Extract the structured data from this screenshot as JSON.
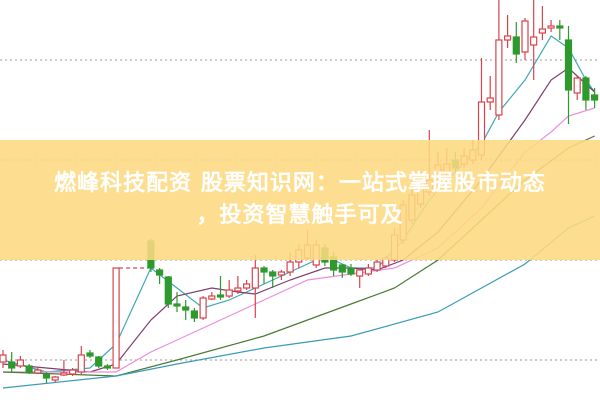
{
  "banner": {
    "line1": "燃峰科技配资 股票知识网：一站式掌握股市动态",
    "line2": "，投资智慧触手可及",
    "color": "#fdda82"
  },
  "chart_data": {
    "type": "candlestick",
    "title": "",
    "xlabel": "",
    "ylabel": "",
    "ylim": [
      0,
      100
    ],
    "grid": "dotted horizontal",
    "gridlines": [
      10,
      35,
      60,
      85
    ],
    "colors": {
      "up": "#d9434b",
      "down": "#2e9a2e",
      "ma5": "#3fa9b5",
      "ma10": "#7e3d6e",
      "ma20": "#e98ee0",
      "ma30": "#4a7a34",
      "ma60": "#3a9ab8"
    },
    "candles": [
      {
        "d": 0,
        "o": 9.5,
        "c": 11.25,
        "h": 12.5,
        "l": 8
      },
      {
        "d": 1,
        "o": 9.5,
        "c": 8,
        "h": 12,
        "l": 7
      },
      {
        "d": 2,
        "o": 8.5,
        "c": 10,
        "h": 11,
        "l": 8
      },
      {
        "d": 3,
        "o": 8.5,
        "c": 7,
        "h": 9,
        "l": 6.5
      },
      {
        "d": 4,
        "o": 6.75,
        "c": 7.5,
        "h": 8,
        "l": 6.5
      },
      {
        "d": 5,
        "o": 6.5,
        "c": 5.5,
        "h": 7,
        "l": 4.25
      },
      {
        "d": 6,
        "o": 5,
        "c": 5.75,
        "h": 6,
        "l": 4.5
      },
      {
        "d": 7,
        "o": 6.25,
        "c": 6.75,
        "h": 10,
        "l": 6
      },
      {
        "d": 8,
        "o": 6.5,
        "c": 7.5,
        "h": 8,
        "l": 6
      },
      {
        "d": 9,
        "o": 7,
        "c": 11.25,
        "h": 13.5,
        "l": 6.5
      },
      {
        "d": 10,
        "o": 11.75,
        "c": 11,
        "h": 12.5,
        "l": 10.5
      },
      {
        "d": 11,
        "o": 10.75,
        "c": 8.5,
        "h": 11,
        "l": 8
      },
      {
        "d": 12,
        "o": 8.5,
        "c": 8,
        "h": 9,
        "l": 7.5
      },
      {
        "d": 13,
        "o": 8,
        "c": 33,
        "h": 33,
        "l": 8
      },
      {
        "d": 17,
        "o": 39.75,
        "c": 33,
        "h": 40.25,
        "l": 32
      },
      {
        "d": 18,
        "o": 32.5,
        "c": 31.25,
        "h": 33,
        "l": 29
      },
      {
        "d": 19,
        "o": 30.75,
        "c": 24,
        "h": 31,
        "l": 23
      },
      {
        "d": 20,
        "o": 24,
        "c": 23.5,
        "h": 27,
        "l": 22
      },
      {
        "d": 21,
        "o": 23.25,
        "c": 22.5,
        "h": 25,
        "l": 20
      },
      {
        "d": 22,
        "o": 22.25,
        "c": 20.5,
        "h": 23,
        "l": 19.5
      },
      {
        "d": 23,
        "o": 20.5,
        "c": 25.5,
        "h": 26,
        "l": 20
      },
      {
        "d": 24,
        "o": 25.25,
        "c": 26,
        "h": 27,
        "l": 25
      },
      {
        "d": 25,
        "o": 26.25,
        "c": 25.75,
        "h": 31,
        "l": 25
      },
      {
        "d": 26,
        "o": 26,
        "c": 27.5,
        "h": 30,
        "l": 25.5
      },
      {
        "d": 27,
        "o": 27.25,
        "c": 28,
        "h": 31,
        "l": 26.5
      },
      {
        "d": 28,
        "o": 28,
        "c": 29,
        "h": 30,
        "l": 27.5
      },
      {
        "d": 29,
        "o": 28,
        "c": 33,
        "h": 36.25,
        "l": 20.5
      },
      {
        "d": 30,
        "o": 33,
        "c": 32,
        "h": 33.5,
        "l": 29
      },
      {
        "d": 31,
        "o": 32,
        "c": 31,
        "h": 32.5,
        "l": 28
      },
      {
        "d": 32,
        "o": 31.25,
        "c": 32,
        "h": 32.5,
        "l": 30
      },
      {
        "d": 33,
        "o": 32,
        "c": 34.5,
        "h": 37,
        "l": 31
      },
      {
        "d": 34,
        "o": 34.5,
        "c": 37.5,
        "h": 39,
        "l": 33
      },
      {
        "d": 35,
        "o": 35.5,
        "c": 38.75,
        "h": 42.5,
        "l": 35
      },
      {
        "d": 36,
        "o": 33.75,
        "c": 38.75,
        "h": 40,
        "l": 33
      },
      {
        "d": 37,
        "o": 38,
        "c": 34.5,
        "h": 39,
        "l": 33.5
      },
      {
        "d": 38,
        "o": 35.75,
        "c": 32.5,
        "h": 37,
        "l": 31
      },
      {
        "d": 39,
        "o": 33.75,
        "c": 32,
        "h": 34,
        "l": 30.5
      },
      {
        "d": 40,
        "o": 33,
        "c": 31.5,
        "h": 34,
        "l": 31
      },
      {
        "d": 41,
        "o": 31,
        "c": 32.5,
        "h": 33,
        "l": 28
      },
      {
        "d": 42,
        "o": 31.5,
        "c": 33,
        "h": 34,
        "l": 31
      },
      {
        "d": 43,
        "o": 32.5,
        "c": 34.5,
        "h": 35,
        "l": 32
      },
      {
        "d": 44,
        "o": 33.5,
        "c": 35.5,
        "h": 36,
        "l": 33
      },
      {
        "d": 45,
        "o": 35,
        "c": 41.25,
        "h": 43,
        "l": 34.5
      },
      {
        "d": 46,
        "o": 40,
        "c": 48.75,
        "h": 50,
        "l": 39
      },
      {
        "d": 47,
        "o": 45,
        "c": 51.25,
        "h": 55,
        "l": 44
      },
      {
        "d": 48,
        "o": 49,
        "c": 53,
        "h": 57,
        "l": 48
      },
      {
        "d": 49,
        "o": 52,
        "c": 55,
        "h": 67.5,
        "l": 51
      },
      {
        "d": 50,
        "o": 55,
        "c": 58.75,
        "h": 62,
        "l": 54
      },
      {
        "d": 51,
        "o": 57,
        "c": 59,
        "h": 63,
        "l": 56
      },
      {
        "d": 52,
        "o": 60,
        "c": 58,
        "h": 62,
        "l": 57
      },
      {
        "d": 53,
        "o": 59,
        "c": 61,
        "h": 63,
        "l": 58
      },
      {
        "d": 54,
        "o": 60,
        "c": 62.5,
        "h": 65,
        "l": 59
      },
      {
        "d": 55,
        "o": 61.25,
        "c": 74.5,
        "h": 85.5,
        "l": 60
      },
      {
        "d": 56,
        "o": 74.5,
        "c": 75.5,
        "h": 81,
        "l": 72.5
      },
      {
        "d": 57,
        "o": 71.25,
        "c": 90,
        "h": 100,
        "l": 70
      },
      {
        "d": 58,
        "o": 90,
        "c": 91,
        "h": 96.25,
        "l": 88
      },
      {
        "d": 59,
        "o": 90.75,
        "c": 86.5,
        "h": 94.5,
        "l": 84.25
      },
      {
        "d": 60,
        "o": 87,
        "c": 94.75,
        "h": 95.5,
        "l": 85
      },
      {
        "d": 61,
        "o": 88.75,
        "c": 90.75,
        "h": 100,
        "l": 80
      },
      {
        "d": 62,
        "o": 91.75,
        "c": 92.75,
        "h": 98.5,
        "l": 90
      },
      {
        "d": 63,
        "o": 93,
        "c": 93.5,
        "h": 95,
        "l": 92
      },
      {
        "d": 64,
        "o": 93.5,
        "c": 93,
        "h": 95,
        "l": 90
      },
      {
        "d": 65,
        "o": 90,
        "c": 77.5,
        "h": 93.5,
        "l": 69
      },
      {
        "d": 66,
        "o": 76.75,
        "c": 80.5,
        "h": 81,
        "l": 75
      },
      {
        "d": 67,
        "o": 80.5,
        "c": 75,
        "h": 81,
        "l": 72.5
      },
      {
        "d": 68,
        "o": 76.25,
        "c": 75,
        "h": 78,
        "l": 73
      }
    ],
    "gap_line": {
      "from_day": 13,
      "to_day": 17,
      "price": 33
    },
    "moving_averages": [
      {
        "key": "ma5",
        "points": [
          [
            0,
            10
          ],
          [
            5,
            7
          ],
          [
            10,
            8
          ],
          [
            13,
            14
          ],
          [
            17,
            33
          ],
          [
            20,
            28
          ],
          [
            23,
            23
          ],
          [
            26,
            25
          ],
          [
            29,
            28
          ],
          [
            33,
            32
          ],
          [
            37,
            36
          ],
          [
            40,
            33
          ],
          [
            43,
            33
          ],
          [
            46,
            40
          ],
          [
            49,
            50
          ],
          [
            52,
            57
          ],
          [
            55,
            64
          ],
          [
            57,
            72
          ],
          [
            60,
            80
          ],
          [
            63,
            91
          ],
          [
            65,
            88
          ],
          [
            67,
            80
          ],
          [
            68,
            77
          ]
        ]
      },
      {
        "key": "ma10",
        "points": [
          [
            0,
            9
          ],
          [
            10,
            7
          ],
          [
            13,
            9
          ],
          [
            17,
            20
          ],
          [
            20,
            26
          ],
          [
            24,
            28
          ],
          [
            27,
            27
          ],
          [
            29,
            26.5
          ],
          [
            33,
            30
          ],
          [
            37,
            33
          ],
          [
            40,
            33
          ],
          [
            43,
            32.5
          ],
          [
            46,
            35
          ],
          [
            50,
            42
          ],
          [
            55,
            55
          ],
          [
            60,
            70
          ],
          [
            63,
            80
          ],
          [
            65,
            83
          ],
          [
            68,
            77
          ]
        ]
      },
      {
        "key": "ma20",
        "points": [
          [
            0,
            7
          ],
          [
            13,
            7
          ],
          [
            17,
            12
          ],
          [
            20,
            15
          ],
          [
            25,
            20
          ],
          [
            30,
            25
          ],
          [
            35,
            30
          ],
          [
            40,
            31.5
          ],
          [
            45,
            33
          ],
          [
            50,
            38
          ],
          [
            55,
            48
          ],
          [
            60,
            62
          ],
          [
            63,
            67
          ],
          [
            65,
            71
          ],
          [
            68,
            73
          ]
        ]
      },
      {
        "key": "ma30",
        "points": [
          [
            0,
            7
          ],
          [
            13,
            6
          ],
          [
            20,
            10
          ],
          [
            30,
            16
          ],
          [
            40,
            24
          ],
          [
            45,
            28
          ],
          [
            50,
            35
          ],
          [
            55,
            45
          ],
          [
            60,
            55
          ],
          [
            65,
            63
          ],
          [
            68,
            66
          ]
        ]
      },
      {
        "key": "ma60",
        "points": [
          [
            0,
            3
          ],
          [
            13,
            6
          ],
          [
            20,
            9
          ],
          [
            30,
            13
          ],
          [
            40,
            16
          ],
          [
            50,
            22
          ],
          [
            55,
            28
          ],
          [
            60,
            34
          ],
          [
            65,
            43
          ],
          [
            68,
            46
          ]
        ]
      }
    ]
  }
}
